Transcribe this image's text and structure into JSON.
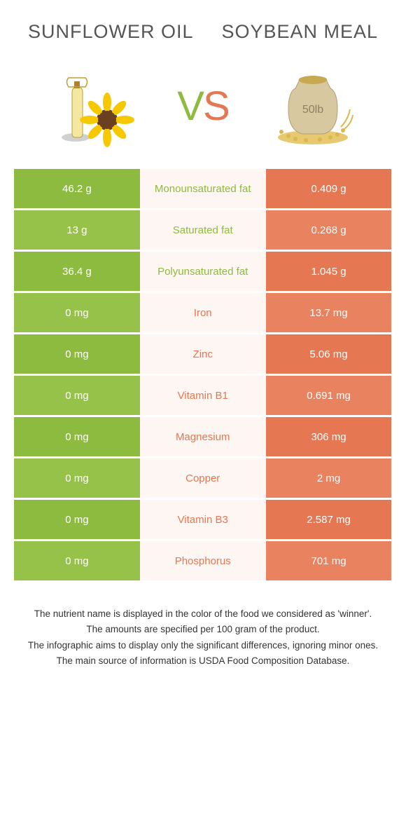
{
  "colors": {
    "left": "#8dbb3f",
    "right": "#e57752",
    "left_alt": "#97c24a",
    "right_alt": "#e8825f",
    "mid_bg": "#fdf6f2"
  },
  "header": {
    "left_title": "Sunflower oil",
    "right_title": "Soybean meal",
    "vs_v": "V",
    "vs_s": "S"
  },
  "rows": [
    {
      "left": "46.2 g",
      "label": "Monounsaturated fat",
      "right": "0.409 g",
      "winner": "left"
    },
    {
      "left": "13 g",
      "label": "Saturated fat",
      "right": "0.268 g",
      "winner": "left"
    },
    {
      "left": "36.4 g",
      "label": "Polyunsaturated fat",
      "right": "1.045 g",
      "winner": "left"
    },
    {
      "left": "0 mg",
      "label": "Iron",
      "right": "13.7 mg",
      "winner": "right"
    },
    {
      "left": "0 mg",
      "label": "Zinc",
      "right": "5.06 mg",
      "winner": "right"
    },
    {
      "left": "0 mg",
      "label": "Vitamin B1",
      "right": "0.691 mg",
      "winner": "right"
    },
    {
      "left": "0 mg",
      "label": "Magnesium",
      "right": "306 mg",
      "winner": "right"
    },
    {
      "left": "0 mg",
      "label": "Copper",
      "right": "2 mg",
      "winner": "right"
    },
    {
      "left": "0 mg",
      "label": "Vitamin B3",
      "right": "2.587 mg",
      "winner": "right"
    },
    {
      "left": "0 mg",
      "label": "Phosphorus",
      "right": "701 mg",
      "winner": "right"
    }
  ],
  "footer": {
    "line1": "The nutrient name is displayed in the color of the food we considered as 'winner'.",
    "line2": "The amounts are specified per 100 gram of the product.",
    "line3": "The infographic aims to display only the significant differences, ignoring minor ones.",
    "line4": "The main source of information is USDA Food Composition Database."
  }
}
